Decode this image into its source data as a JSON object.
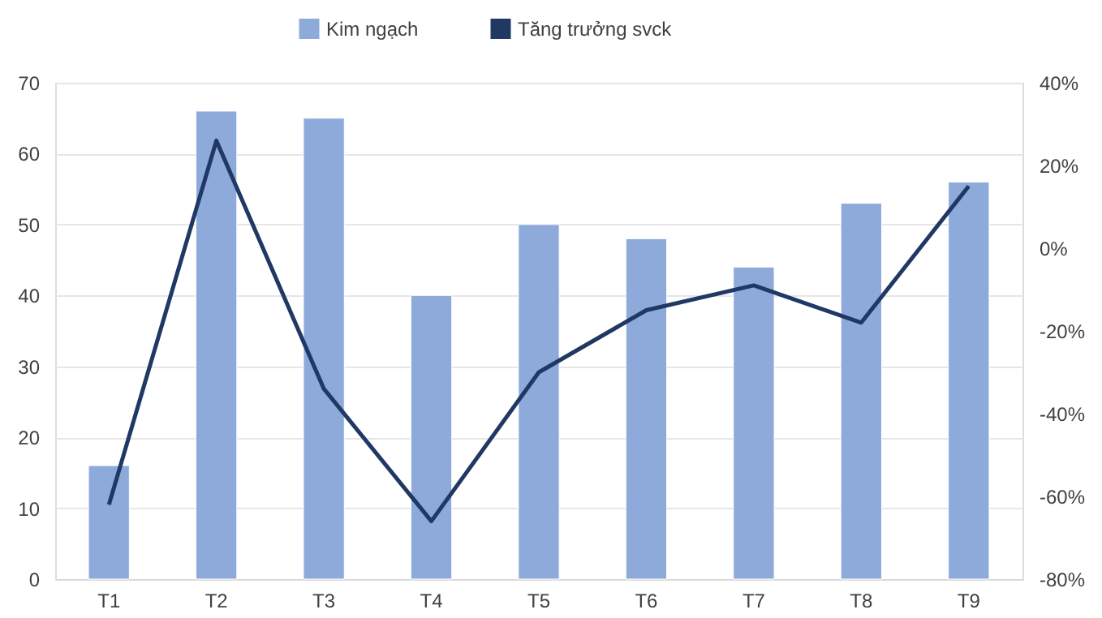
{
  "chart_data": {
    "type": "bar",
    "categories": [
      "T1",
      "T2",
      "T3",
      "T4",
      "T5",
      "T6",
      "T7",
      "T8",
      "T9"
    ],
    "series": [
      {
        "name": "Kim ngạch",
        "color": "#8eaadb",
        "values": [
          16,
          66,
          65,
          40,
          50,
          48,
          44,
          53,
          56
        ]
      },
      {
        "name": "Tăng trưởng svck",
        "type": "line",
        "axis": "y2",
        "color": "#203864",
        "values": [
          -62,
          26,
          -34,
          -66,
          -30,
          -15,
          -9,
          -18,
          15
        ]
      }
    ],
    "ylim": [
      0,
      70
    ],
    "yticks": [
      0,
      10,
      20,
      30,
      40,
      50,
      60,
      70
    ],
    "y2lim": [
      -80,
      40
    ],
    "y2ticks": [
      {
        "value": -80,
        "label": "-80%"
      },
      {
        "value": -60,
        "label": "-60%"
      },
      {
        "value": -40,
        "label": "-40%"
      },
      {
        "value": -20,
        "label": "-20%"
      },
      {
        "value": 0,
        "label": "0%"
      },
      {
        "value": 20,
        "label": "20%"
      },
      {
        "value": 40,
        "label": "40%"
      }
    ],
    "grid": "y",
    "legend": "top",
    "marker": "none",
    "line_style": "solid"
  }
}
